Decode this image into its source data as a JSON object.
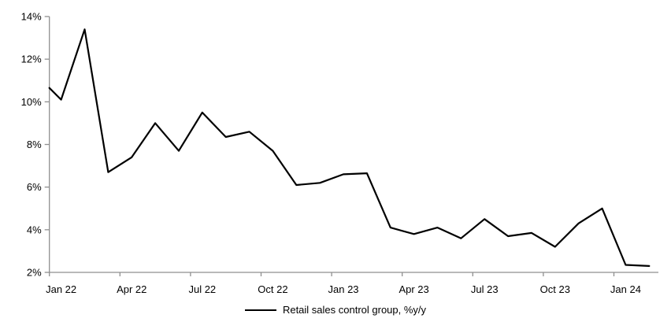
{
  "chart_data": {
    "type": "line",
    "title": "",
    "xlabel": "",
    "ylabel": "",
    "grid": false,
    "legend_position": "bottom-center",
    "background_color": "#ffffff",
    "line_color": "#000000",
    "axis_color": "#8f8f8f",
    "ylim": [
      2,
      14
    ],
    "ytick_step": 2,
    "y_tick_labels": [
      "2%",
      "4%",
      "6%",
      "8%",
      "10%",
      "12%",
      "14%"
    ],
    "x_tick_labels": [
      "Jan 22",
      "Apr 22",
      "Jul 22",
      "Oct 22",
      "Jan 23",
      "Apr 23",
      "Jul 23",
      "Oct 23",
      "Jan 24"
    ],
    "left_edge_entry_value": 10.65,
    "series": [
      {
        "name": "Retail sales control group, %y/y",
        "months": [
          "Jan 22",
          "Feb 22",
          "Mar 22",
          "Apr 22",
          "May 22",
          "Jun 22",
          "Jul 22",
          "Aug 22",
          "Sep 22",
          "Oct 22",
          "Nov 22",
          "Dec 22",
          "Jan 23",
          "Feb 23",
          "Mar 23",
          "Apr 23",
          "May 23",
          "Jun 23",
          "Jul 23",
          "Aug 23",
          "Sep 23",
          "Oct 23",
          "Nov 23",
          "Dec 23",
          "Jan 24",
          "Feb 24"
        ],
        "values": [
          10.1,
          13.4,
          6.7,
          7.4,
          9.0,
          7.7,
          9.5,
          8.35,
          8.6,
          7.7,
          6.1,
          6.2,
          6.6,
          6.65,
          4.1,
          3.8,
          4.1,
          3.6,
          4.5,
          3.7,
          3.85,
          3.2,
          4.3,
          5.0,
          2.35,
          2.3
        ]
      }
    ]
  },
  "legend": {
    "label": "Retail sales control group, %y/y"
  }
}
